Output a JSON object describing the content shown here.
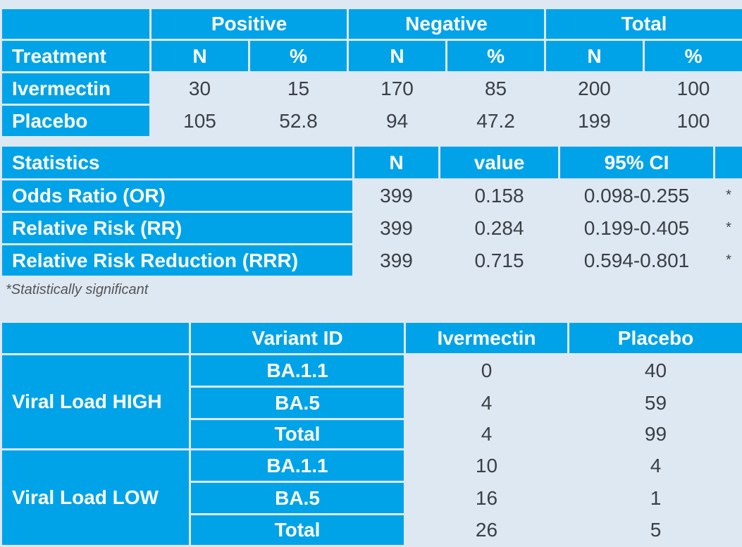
{
  "table1": {
    "groups": [
      "Positive",
      "Negative",
      "Total"
    ],
    "row_header": "Treatment",
    "sub_headers": [
      "N",
      "%",
      "N",
      "%",
      "N",
      "%"
    ],
    "rows": [
      {
        "label": "Ivermectin",
        "cells": [
          "30",
          "15",
          "170",
          "85",
          "200",
          "100"
        ]
      },
      {
        "label": "Placebo",
        "cells": [
          "105",
          "52.8",
          "94",
          "47.2",
          "199",
          "100"
        ]
      }
    ]
  },
  "table2": {
    "headers": [
      "Statistics",
      "N",
      "value",
      "95% CI"
    ],
    "rows": [
      {
        "label": "Odds Ratio (OR)",
        "n": "399",
        "value": "0.158",
        "ci": "0.098-0.255",
        "mark": "*"
      },
      {
        "label": "Relative Risk (RR)",
        "n": "399",
        "value": "0.284",
        "ci": "0.199-0.405",
        "mark": "*"
      },
      {
        "label": "Relative Risk Reduction (RRR)",
        "n": "399",
        "value": "0.715",
        "ci": "0.594-0.801",
        "mark": "*"
      }
    ],
    "footnote": "*Statistically significant"
  },
  "table3": {
    "headers": [
      "Variant ID",
      "Ivermectin",
      "Placebo"
    ],
    "groups": [
      {
        "label": "Viral Load HIGH",
        "rows": [
          {
            "variant": "BA.1.1",
            "ivermectin": "0",
            "placebo": "40"
          },
          {
            "variant": "BA.5",
            "ivermectin": "4",
            "placebo": "59"
          },
          {
            "variant": "Total",
            "ivermectin": "4",
            "placebo": "99"
          }
        ]
      },
      {
        "label": "Viral Load LOW",
        "rows": [
          {
            "variant": "BA.1.1",
            "ivermectin": "10",
            "placebo": "4"
          },
          {
            "variant": "BA.5",
            "ivermectin": "16",
            "placebo": "1"
          },
          {
            "variant": "Total",
            "ivermectin": "26",
            "placebo": "5"
          }
        ]
      }
    ]
  }
}
